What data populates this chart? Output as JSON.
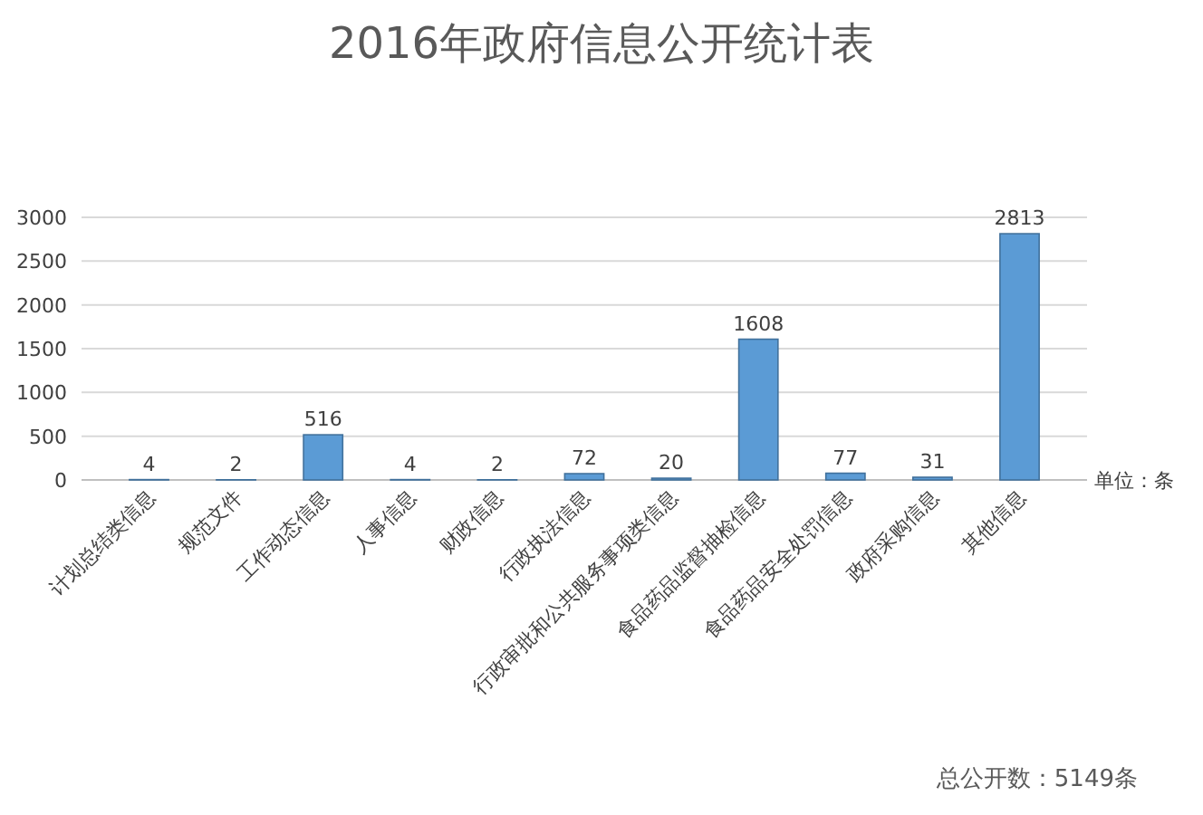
{
  "chart_data": {
    "type": "bar",
    "title": "2016年政府信息公开统计表",
    "categories": [
      "计划总结类信息",
      "规范文件",
      "工作动态信息",
      "人事信息",
      "财政信息",
      "行政执法信息",
      "行政审批和公共服务事项类信息",
      "食品药品监督抽检信息",
      "食品药品安全处罚信息",
      "政府采购信息",
      "其他信息"
    ],
    "values": [
      4,
      2,
      516,
      4,
      2,
      72,
      20,
      1608,
      77,
      31,
      2813
    ],
    "color": "#5b9bd5",
    "ylim": [
      0,
      3000
    ],
    "yticks": [
      0,
      500,
      1000,
      1500,
      2000,
      2500,
      3000
    ],
    "grid": "y",
    "data_labels": true,
    "annotations": [
      "单位：条",
      "总公开数：5149条"
    ]
  }
}
